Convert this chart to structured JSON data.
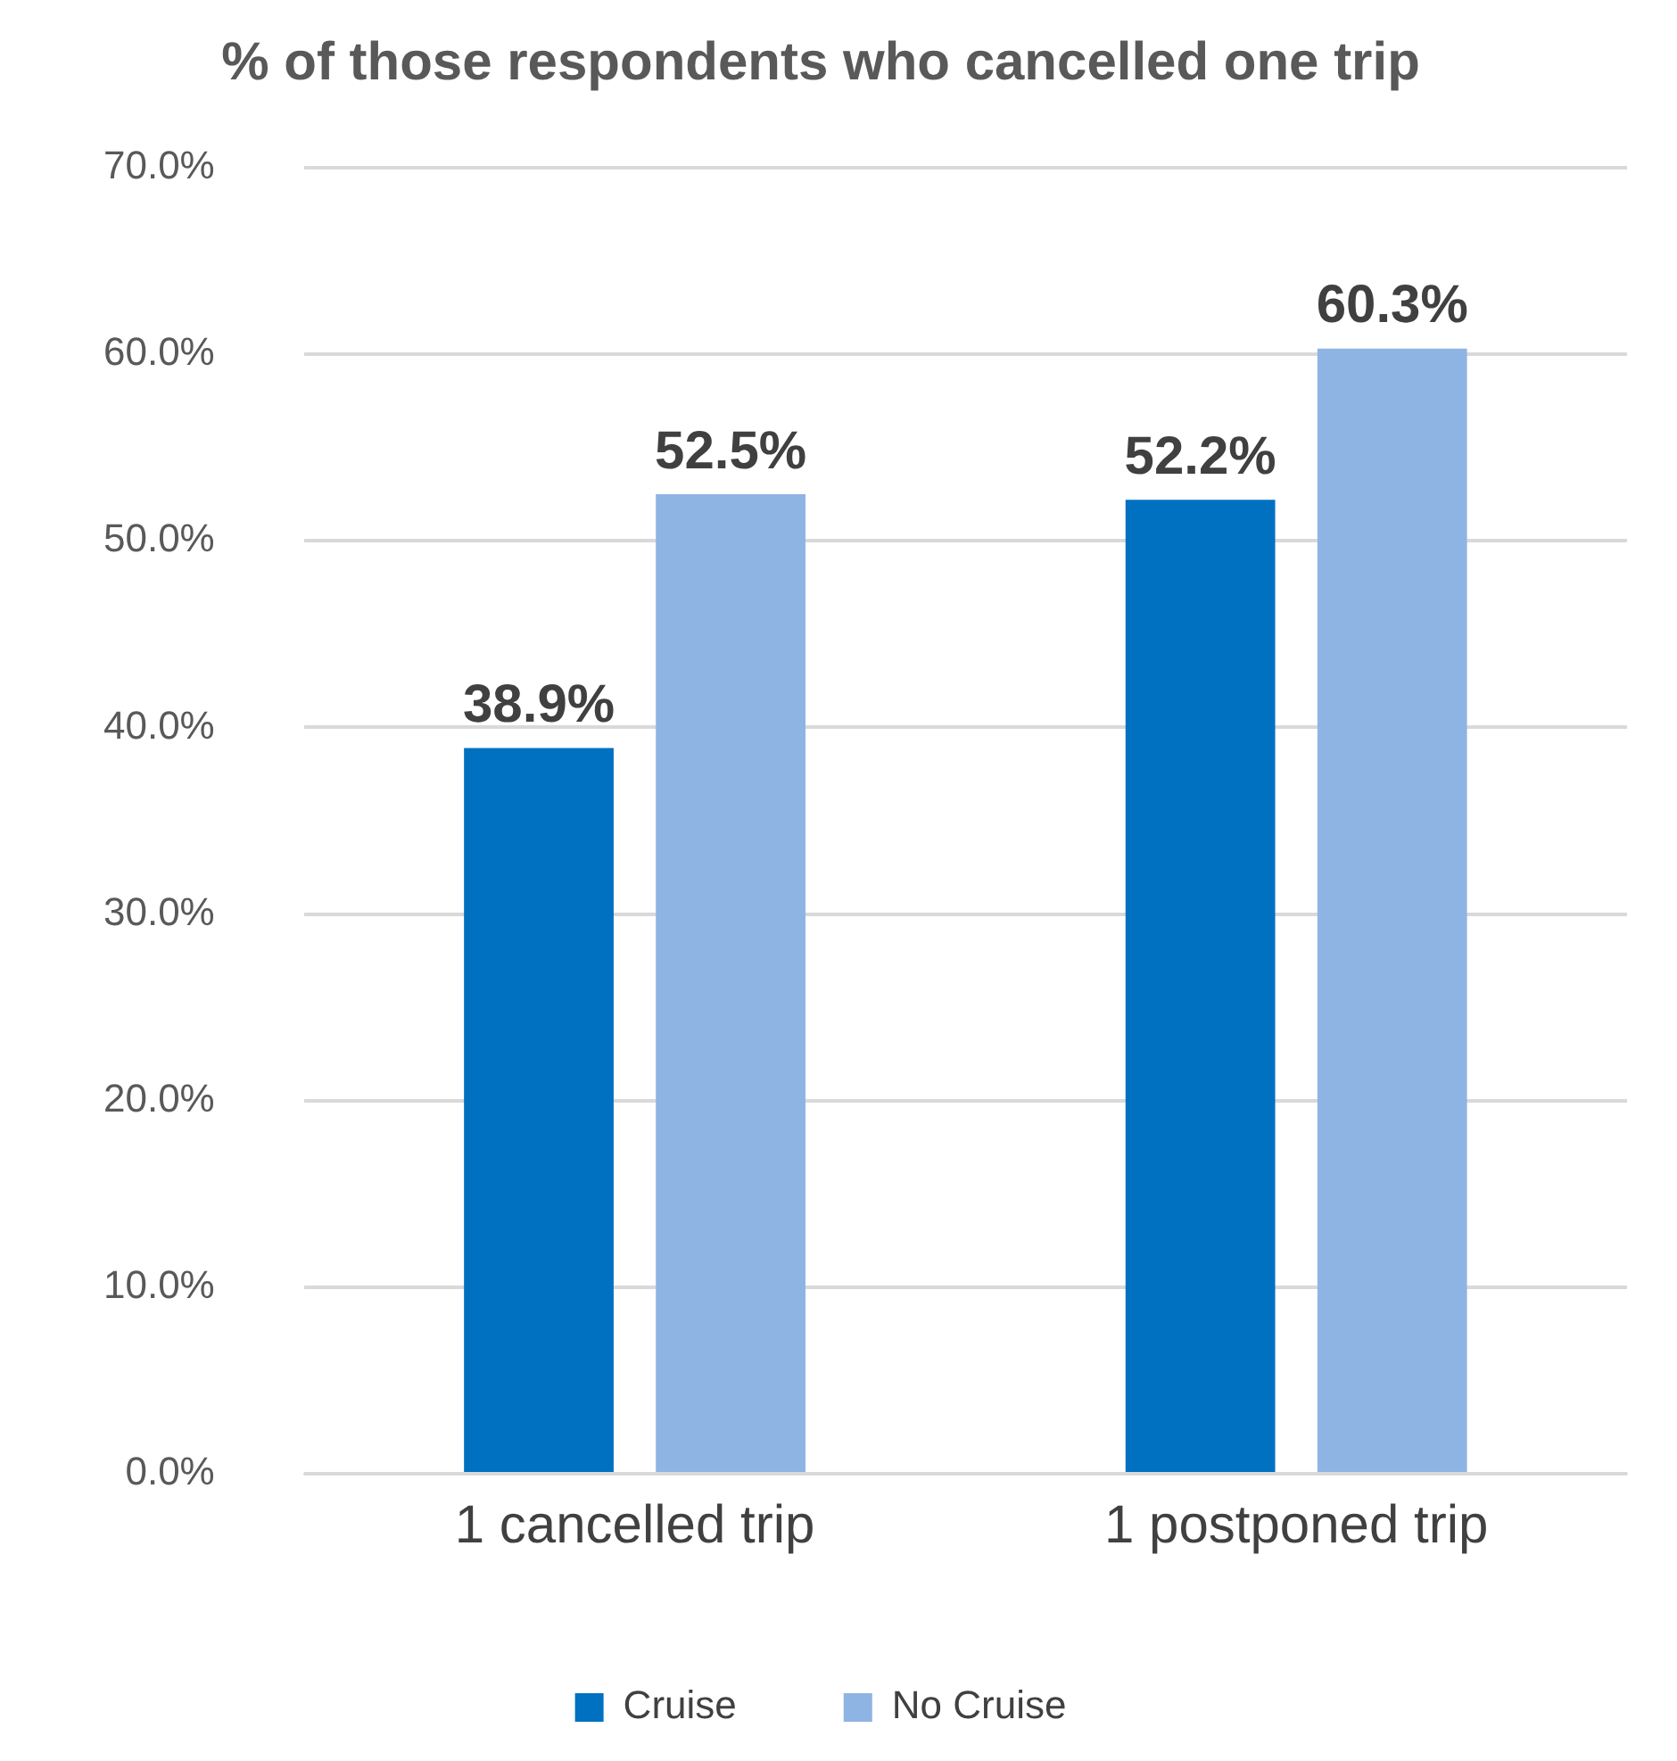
{
  "chart_data": {
    "type": "bar",
    "title": "% of those respondents who cancelled one trip",
    "categories": [
      "1 cancelled trip",
      "1 postponed trip"
    ],
    "series": [
      {
        "name": "Cruise",
        "color": "#0070c0",
        "values": [
          38.9,
          52.2
        ],
        "value_labels": [
          "38.9%",
          "52.2%"
        ]
      },
      {
        "name": "No Cruise",
        "color": "#8eb4e3",
        "values": [
          52.5,
          60.3
        ],
        "value_labels": [
          "52.5%",
          "60.3%"
        ]
      }
    ],
    "ylim": [
      0,
      70
    ],
    "yticks": [
      {
        "value": 0,
        "label": "0.0%"
      },
      {
        "value": 10,
        "label": "10.0%"
      },
      {
        "value": 20,
        "label": "20.0%"
      },
      {
        "value": 30,
        "label": "30.0%"
      },
      {
        "value": 40,
        "label": "40.0%"
      },
      {
        "value": 50,
        "label": "50.0%"
      },
      {
        "value": 60,
        "label": "60.0%"
      },
      {
        "value": 70,
        "label": "70.0%"
      }
    ],
    "grid": "y",
    "legend": "bottom"
  }
}
